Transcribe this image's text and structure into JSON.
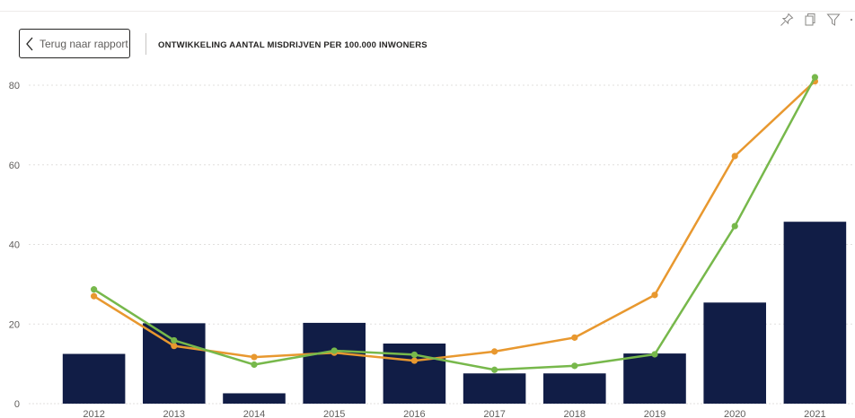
{
  "header": {
    "back_label": "Terug naar rapport",
    "back_icon": "chevron-left-icon",
    "title": "ONTWIKKELING AANTAL MISDRIJVEN PER 100.000 INWONERS",
    "icons": [
      "pin-icon",
      "copy-icon",
      "filter-icon",
      "more-icon"
    ]
  },
  "colors": {
    "bar": "#111d46",
    "line_orange": "#e8982f",
    "line_green": "#77b84b",
    "grid": "#e1dfdd"
  },
  "chart_data": {
    "type": "bar",
    "title": "ONTWIKKELING AANTAL MISDRIJVEN PER 100.000 INWONERS",
    "xlabel": "",
    "ylabel": "",
    "categories": [
      "2012",
      "2013",
      "2014",
      "2015",
      "2016",
      "2017",
      "2018",
      "2019",
      "2020",
      "2021"
    ],
    "ylim": [
      0,
      80
    ],
    "yticks": [
      0,
      20,
      40,
      60,
      80
    ],
    "grid": true,
    "legend": "none",
    "series": [
      {
        "type": "bar",
        "color": "#111d46",
        "values": [
          12.5,
          20.2,
          2.6,
          20.3,
          15.1,
          7.6,
          7.6,
          12.6,
          25.4,
          45.7
        ]
      },
      {
        "type": "line",
        "color": "#e8982f",
        "values": [
          27.0,
          14.5,
          11.7,
          12.8,
          10.8,
          13.1,
          16.6,
          27.3,
          62.2,
          81.0
        ]
      },
      {
        "type": "line",
        "color": "#77b84b",
        "values": [
          28.7,
          15.9,
          9.8,
          13.3,
          12.3,
          8.5,
          9.5,
          12.4,
          44.6,
          82.0
        ]
      }
    ]
  }
}
